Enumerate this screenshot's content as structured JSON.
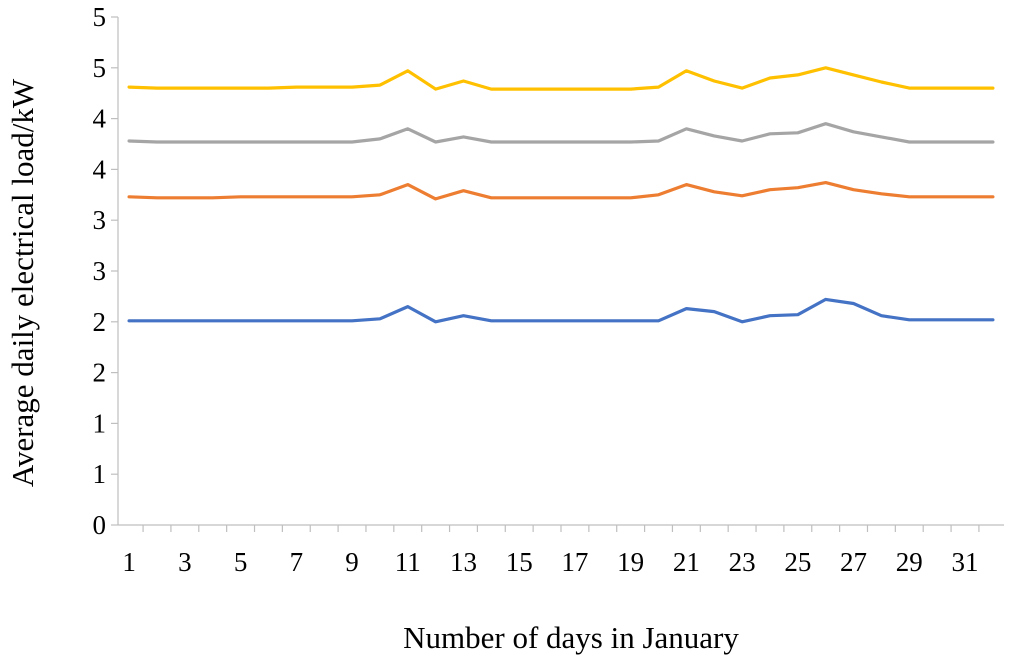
{
  "chart_data": {
    "type": "line",
    "xlabel": "Number of days in January",
    "ylabel": "Average daily electrical load/kW",
    "x": [
      1,
      2,
      3,
      4,
      5,
      6,
      7,
      8,
      9,
      10,
      11,
      12,
      13,
      14,
      15,
      16,
      17,
      18,
      19,
      20,
      21,
      22,
      23,
      24,
      25,
      26,
      27,
      28,
      29,
      30,
      31,
      32
    ],
    "x_tick_labels": [
      "1",
      "3",
      "5",
      "7",
      "9",
      "11",
      "13",
      "15",
      "17",
      "19",
      "21",
      "23",
      "25",
      "27",
      "29",
      "31"
    ],
    "y_tick_labels": [
      "0",
      "1",
      "1",
      "2",
      "2",
      "3",
      "3",
      "4",
      "4",
      "5",
      "5"
    ],
    "ylim": [
      0,
      5
    ],
    "legend": "none",
    "grid": false,
    "series": [
      {
        "color": "#4472c4",
        "values": [
          2.01,
          2.01,
          2.01,
          2.01,
          2.01,
          2.01,
          2.01,
          2.01,
          2.01,
          2.03,
          2.15,
          2.0,
          2.06,
          2.01,
          2.01,
          2.01,
          2.01,
          2.01,
          2.01,
          2.01,
          2.13,
          2.1,
          2.0,
          2.06,
          2.07,
          2.22,
          2.18,
          2.06,
          2.02,
          2.02,
          2.02,
          2.02
        ]
      },
      {
        "color": "#ed7d31",
        "values": [
          3.23,
          3.22,
          3.22,
          3.22,
          3.23,
          3.23,
          3.23,
          3.23,
          3.23,
          3.25,
          3.35,
          3.21,
          3.29,
          3.22,
          3.22,
          3.22,
          3.22,
          3.22,
          3.22,
          3.25,
          3.35,
          3.28,
          3.24,
          3.3,
          3.32,
          3.37,
          3.3,
          3.26,
          3.23,
          3.23,
          3.23,
          3.23
        ]
      },
      {
        "color": "#a5a5a5",
        "values": [
          3.78,
          3.77,
          3.77,
          3.77,
          3.77,
          3.77,
          3.77,
          3.77,
          3.77,
          3.8,
          3.9,
          3.77,
          3.82,
          3.77,
          3.77,
          3.77,
          3.77,
          3.77,
          3.77,
          3.78,
          3.9,
          3.83,
          3.78,
          3.85,
          3.86,
          3.95,
          3.87,
          3.82,
          3.77,
          3.77,
          3.77,
          3.77
        ]
      },
      {
        "color": "#ffc000",
        "values": [
          4.31,
          4.3,
          4.3,
          4.3,
          4.3,
          4.3,
          4.31,
          4.31,
          4.31,
          4.33,
          4.47,
          4.29,
          4.37,
          4.29,
          4.29,
          4.29,
          4.29,
          4.29,
          4.29,
          4.31,
          4.47,
          4.37,
          4.3,
          4.4,
          4.43,
          4.5,
          4.43,
          4.36,
          4.3,
          4.3,
          4.3,
          4.3
        ]
      }
    ]
  }
}
